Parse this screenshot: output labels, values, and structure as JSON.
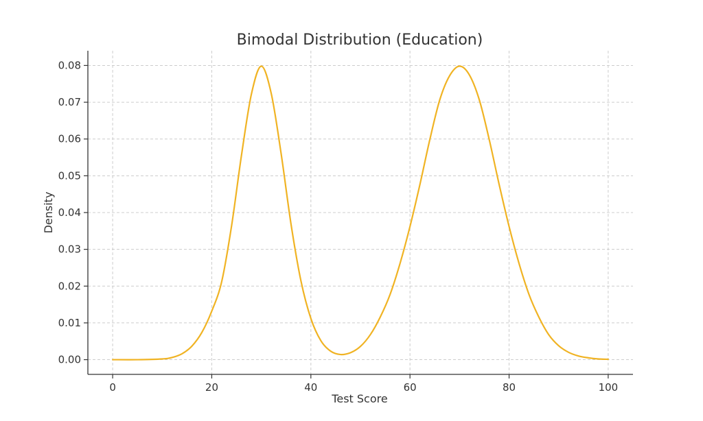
{
  "chart_data": {
    "type": "line",
    "title": "Bimodal Distribution (Education)",
    "xlabel": "Test Score",
    "ylabel": "Density",
    "xlim": [
      -5,
      105
    ],
    "ylim": [
      -0.004,
      0.084
    ],
    "x_ticks": [
      0,
      20,
      40,
      60,
      80,
      100
    ],
    "x_tick_labels": [
      "0",
      "20",
      "40",
      "60",
      "80",
      "100"
    ],
    "y_ticks": [
      0.0,
      0.01,
      0.02,
      0.03,
      0.04,
      0.05,
      0.06,
      0.07,
      0.08
    ],
    "y_tick_labels": [
      "0.00",
      "0.01",
      "0.02",
      "0.03",
      "0.04",
      "0.05",
      "0.06",
      "0.07",
      "0.08"
    ],
    "grid": true,
    "series": [
      {
        "color": "#f0b323",
        "x": [
          0,
          5,
          10,
          12,
          14,
          16,
          18,
          20,
          22,
          24,
          26,
          28,
          30,
          32,
          34,
          36,
          38,
          40,
          42,
          44,
          46,
          48,
          50,
          52,
          54,
          56,
          58,
          60,
          62,
          64,
          66,
          68,
          70,
          72,
          74,
          76,
          78,
          80,
          82,
          84,
          86,
          88,
          90,
          92,
          94,
          96,
          98,
          100
        ],
        "y": [
          0.0,
          0.0,
          0.0002,
          0.0006,
          0.0016,
          0.0037,
          0.0074,
          0.0132,
          0.0212,
          0.0364,
          0.0556,
          0.0722,
          0.0798,
          0.0724,
          0.056,
          0.0368,
          0.0214,
          0.0112,
          0.0052,
          0.0023,
          0.0014,
          0.0019,
          0.0036,
          0.0068,
          0.0116,
          0.0178,
          0.0262,
          0.0362,
          0.0476,
          0.0598,
          0.0706,
          0.0772,
          0.0798,
          0.0774,
          0.0706,
          0.0598,
          0.0476,
          0.0362,
          0.0262,
          0.0178,
          0.0116,
          0.0068,
          0.0038,
          0.002,
          0.001,
          0.0005,
          0.0002,
          0.0001
        ]
      }
    ]
  }
}
